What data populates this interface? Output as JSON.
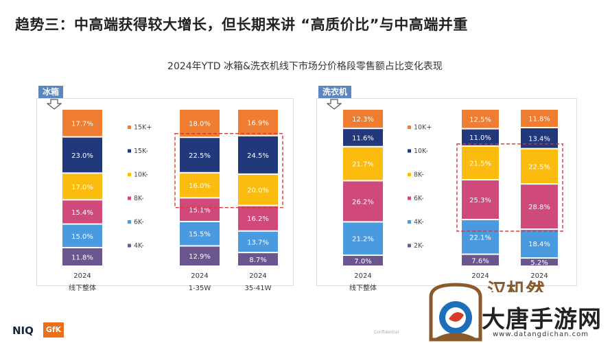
{
  "slide_title": "趋势三：中高端获得较大增长，但长期来讲 “高质价比”与中高端并重",
  "chart_title": "2024年YTD 冰箱&洗衣机线下市场分价格段零售额占比变化表现",
  "footer": {
    "niq": "NIQ",
    "gfk": "GfK",
    "confidential": "Confidential"
  },
  "watermark": {
    "brand": "大唐手游网",
    "url": "www.datangdichan.com",
    "top_text": "汉机然"
  },
  "colors": {
    "15K+": "#ee7d31",
    "15K-": "#21397a",
    "10K-": "#fbbc0f",
    "8K-": "#cf4a7b",
    "6K-": "#4a9ae0",
    "4K-": "#6a558e"
  },
  "chart_data": [
    {
      "type": "bar",
      "stacked": true,
      "panel_label": "冰箱",
      "categories": [
        {
          "year": "2024",
          "sub": "线下整体"
        },
        {
          "year": "2024",
          "sub": "1-35W"
        },
        {
          "year": "2024",
          "sub": "35-41W"
        }
      ],
      "series": [
        {
          "name": "4K-",
          "color": "#6a558e",
          "values": [
            11.8,
            12.9,
            8.7
          ],
          "labels": [
            "11.8%",
            "12.9%",
            "8.7%"
          ]
        },
        {
          "name": "6K-",
          "color": "#4a9ae0",
          "values": [
            15.0,
            15.5,
            13.7
          ],
          "labels": [
            "15.0%",
            "15.5%",
            "13.7%"
          ]
        },
        {
          "name": "8K-",
          "color": "#cf4a7b",
          "values": [
            15.4,
            15.1,
            16.2
          ],
          "labels": [
            "15.4%",
            "15.1%",
            "16.2%"
          ]
        },
        {
          "name": "10K-",
          "color": "#fbbc0f",
          "values": [
            17.0,
            16.0,
            20.0
          ],
          "labels": [
            "17.0%",
            "16.0%",
            "20.0%"
          ]
        },
        {
          "name": "15K-",
          "color": "#21397a",
          "values": [
            23.0,
            22.5,
            24.5
          ],
          "labels": [
            "23.0%",
            "22.5%",
            "24.5%"
          ]
        },
        {
          "name": "15K+",
          "color": "#ee7d31",
          "values": [
            17.7,
            18.0,
            16.9
          ],
          "labels": [
            "17.7%",
            "18.0%",
            "16.9%"
          ]
        }
      ],
      "legend": [
        "15K+",
        "15K-",
        "10K-",
        "8K-",
        "6K-",
        "4K-"
      ],
      "highlight": {
        "series": [
          "10K-",
          "15K-"
        ],
        "categories": [
          1,
          2
        ]
      },
      "ylim": [
        0,
        100
      ]
    },
    {
      "type": "bar",
      "stacked": true,
      "panel_label": "洗衣机",
      "categories": [
        {
          "year": "2024",
          "sub": "线下整体"
        },
        {
          "year": "2024",
          "sub": ""
        },
        {
          "year": "2024",
          "sub": ""
        }
      ],
      "series": [
        {
          "name": "2K-",
          "color": "#6a558e",
          "values": [
            7.0,
            7.6,
            5.2
          ],
          "labels": [
            "7.0%",
            "7.6%",
            "5.2%"
          ]
        },
        {
          "name": "4K-",
          "color": "#4a9ae0",
          "values": [
            21.2,
            22.1,
            18.4
          ],
          "labels": [
            "21.2%",
            "22.1%",
            "18.4%"
          ]
        },
        {
          "name": "6K-",
          "color": "#cf4a7b",
          "values": [
            26.2,
            25.3,
            28.8
          ],
          "labels": [
            "26.2%",
            "25.3%",
            "28.8%"
          ]
        },
        {
          "name": "8K-",
          "color": "#fbbc0f",
          "values": [
            21.7,
            21.5,
            22.5
          ],
          "labels": [
            "21.7%",
            "21.5%",
            "22.5%"
          ]
        },
        {
          "name": "10K-",
          "color": "#21397a",
          "values": [
            11.6,
            11.0,
            13.4
          ],
          "labels": [
            "11.6%",
            "11.0%",
            "13.4%"
          ]
        },
        {
          "name": "10K+",
          "color": "#ee7d31",
          "values": [
            12.3,
            12.5,
            11.8
          ],
          "labels": [
            "12.3%",
            "12.5%",
            "11.8%"
          ]
        }
      ],
      "legend": [
        "10K+",
        "10K-",
        "8K-",
        "6K-",
        "4K-",
        "2K-"
      ],
      "highlight": {
        "series": [
          "6K-",
          "8K-"
        ],
        "categories": [
          1,
          2
        ]
      },
      "ylim": [
        0,
        100
      ]
    }
  ]
}
